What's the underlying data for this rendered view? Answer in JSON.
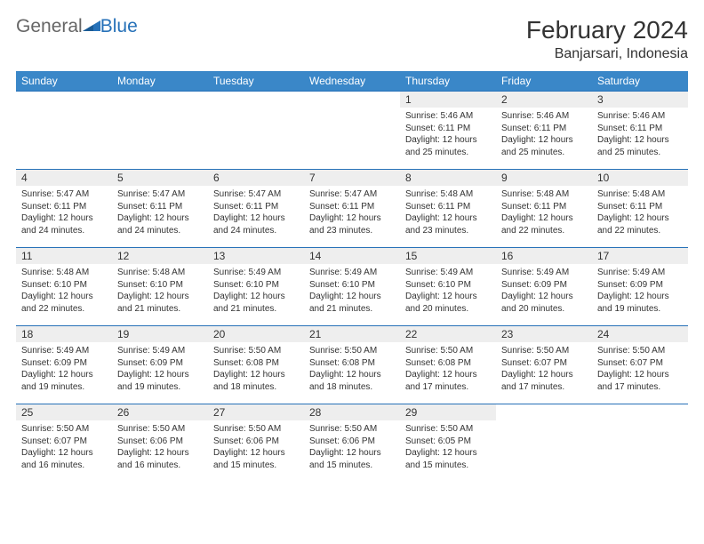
{
  "brand": {
    "general": "General",
    "blue": "Blue",
    "accent_color": "#2671b8",
    "gray_color": "#666666"
  },
  "header": {
    "month_title": "February 2024",
    "location": "Banjarsari, Indonesia"
  },
  "calendar": {
    "header_bg": "#3a87c8",
    "header_fg": "#ffffff",
    "daynum_bg": "#eeeeee",
    "border_color": "#2671b8",
    "day_labels": [
      "Sunday",
      "Monday",
      "Tuesday",
      "Wednesday",
      "Thursday",
      "Friday",
      "Saturday"
    ],
    "weeks": [
      [
        null,
        null,
        null,
        null,
        {
          "num": "1",
          "sunrise": "Sunrise: 5:46 AM",
          "sunset": "Sunset: 6:11 PM",
          "daylight": "Daylight: 12 hours and 25 minutes."
        },
        {
          "num": "2",
          "sunrise": "Sunrise: 5:46 AM",
          "sunset": "Sunset: 6:11 PM",
          "daylight": "Daylight: 12 hours and 25 minutes."
        },
        {
          "num": "3",
          "sunrise": "Sunrise: 5:46 AM",
          "sunset": "Sunset: 6:11 PM",
          "daylight": "Daylight: 12 hours and 25 minutes."
        }
      ],
      [
        {
          "num": "4",
          "sunrise": "Sunrise: 5:47 AM",
          "sunset": "Sunset: 6:11 PM",
          "daylight": "Daylight: 12 hours and 24 minutes."
        },
        {
          "num": "5",
          "sunrise": "Sunrise: 5:47 AM",
          "sunset": "Sunset: 6:11 PM",
          "daylight": "Daylight: 12 hours and 24 minutes."
        },
        {
          "num": "6",
          "sunrise": "Sunrise: 5:47 AM",
          "sunset": "Sunset: 6:11 PM",
          "daylight": "Daylight: 12 hours and 24 minutes."
        },
        {
          "num": "7",
          "sunrise": "Sunrise: 5:47 AM",
          "sunset": "Sunset: 6:11 PM",
          "daylight": "Daylight: 12 hours and 23 minutes."
        },
        {
          "num": "8",
          "sunrise": "Sunrise: 5:48 AM",
          "sunset": "Sunset: 6:11 PM",
          "daylight": "Daylight: 12 hours and 23 minutes."
        },
        {
          "num": "9",
          "sunrise": "Sunrise: 5:48 AM",
          "sunset": "Sunset: 6:11 PM",
          "daylight": "Daylight: 12 hours and 22 minutes."
        },
        {
          "num": "10",
          "sunrise": "Sunrise: 5:48 AM",
          "sunset": "Sunset: 6:11 PM",
          "daylight": "Daylight: 12 hours and 22 minutes."
        }
      ],
      [
        {
          "num": "11",
          "sunrise": "Sunrise: 5:48 AM",
          "sunset": "Sunset: 6:10 PM",
          "daylight": "Daylight: 12 hours and 22 minutes."
        },
        {
          "num": "12",
          "sunrise": "Sunrise: 5:48 AM",
          "sunset": "Sunset: 6:10 PM",
          "daylight": "Daylight: 12 hours and 21 minutes."
        },
        {
          "num": "13",
          "sunrise": "Sunrise: 5:49 AM",
          "sunset": "Sunset: 6:10 PM",
          "daylight": "Daylight: 12 hours and 21 minutes."
        },
        {
          "num": "14",
          "sunrise": "Sunrise: 5:49 AM",
          "sunset": "Sunset: 6:10 PM",
          "daylight": "Daylight: 12 hours and 21 minutes."
        },
        {
          "num": "15",
          "sunrise": "Sunrise: 5:49 AM",
          "sunset": "Sunset: 6:10 PM",
          "daylight": "Daylight: 12 hours and 20 minutes."
        },
        {
          "num": "16",
          "sunrise": "Sunrise: 5:49 AM",
          "sunset": "Sunset: 6:09 PM",
          "daylight": "Daylight: 12 hours and 20 minutes."
        },
        {
          "num": "17",
          "sunrise": "Sunrise: 5:49 AM",
          "sunset": "Sunset: 6:09 PM",
          "daylight": "Daylight: 12 hours and 19 minutes."
        }
      ],
      [
        {
          "num": "18",
          "sunrise": "Sunrise: 5:49 AM",
          "sunset": "Sunset: 6:09 PM",
          "daylight": "Daylight: 12 hours and 19 minutes."
        },
        {
          "num": "19",
          "sunrise": "Sunrise: 5:49 AM",
          "sunset": "Sunset: 6:09 PM",
          "daylight": "Daylight: 12 hours and 19 minutes."
        },
        {
          "num": "20",
          "sunrise": "Sunrise: 5:50 AM",
          "sunset": "Sunset: 6:08 PM",
          "daylight": "Daylight: 12 hours and 18 minutes."
        },
        {
          "num": "21",
          "sunrise": "Sunrise: 5:50 AM",
          "sunset": "Sunset: 6:08 PM",
          "daylight": "Daylight: 12 hours and 18 minutes."
        },
        {
          "num": "22",
          "sunrise": "Sunrise: 5:50 AM",
          "sunset": "Sunset: 6:08 PM",
          "daylight": "Daylight: 12 hours and 17 minutes."
        },
        {
          "num": "23",
          "sunrise": "Sunrise: 5:50 AM",
          "sunset": "Sunset: 6:07 PM",
          "daylight": "Daylight: 12 hours and 17 minutes."
        },
        {
          "num": "24",
          "sunrise": "Sunrise: 5:50 AM",
          "sunset": "Sunset: 6:07 PM",
          "daylight": "Daylight: 12 hours and 17 minutes."
        }
      ],
      [
        {
          "num": "25",
          "sunrise": "Sunrise: 5:50 AM",
          "sunset": "Sunset: 6:07 PM",
          "daylight": "Daylight: 12 hours and 16 minutes."
        },
        {
          "num": "26",
          "sunrise": "Sunrise: 5:50 AM",
          "sunset": "Sunset: 6:06 PM",
          "daylight": "Daylight: 12 hours and 16 minutes."
        },
        {
          "num": "27",
          "sunrise": "Sunrise: 5:50 AM",
          "sunset": "Sunset: 6:06 PM",
          "daylight": "Daylight: 12 hours and 15 minutes."
        },
        {
          "num": "28",
          "sunrise": "Sunrise: 5:50 AM",
          "sunset": "Sunset: 6:06 PM",
          "daylight": "Daylight: 12 hours and 15 minutes."
        },
        {
          "num": "29",
          "sunrise": "Sunrise: 5:50 AM",
          "sunset": "Sunset: 6:05 PM",
          "daylight": "Daylight: 12 hours and 15 minutes."
        },
        null,
        null
      ]
    ]
  }
}
